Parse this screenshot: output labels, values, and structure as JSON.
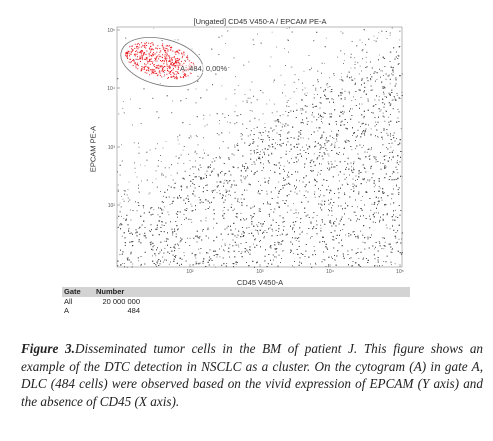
{
  "figure": {
    "title": "[Ungated] CD45 V450-A / EPCAM PE-A",
    "x_axis_label": "CD45 V450-A",
    "y_axis_label": "EPCAM PE-A",
    "gate_label": "A: 484, 0,00%",
    "x_ticks": [
      "10²",
      "10³",
      "10⁴",
      "10⁵"
    ],
    "y_ticks": [
      "10⁵",
      "10⁴",
      "10³",
      "10²"
    ]
  },
  "gate_table": {
    "headers": [
      "Gate",
      "Number"
    ],
    "rows": [
      {
        "gate": "All",
        "number": "20 000 000"
      },
      {
        "gate": "A",
        "number": "484"
      }
    ]
  },
  "caption": {
    "label": "Figure 3.",
    "text": "Disseminated tumor cells in the BM of patient J. This figure shows an example of the DTC detection in NSCLC as a cluster. On the cytogram (A) in gate A, DLC (484 cells) were observed based on the vivid expression of EPCAM (Y axis) and the absence of CD45 (X axis)."
  },
  "colors": {
    "events": "#555555",
    "gated_events": "#e8141c",
    "axis": "#777777",
    "table_header": "#d3d3d3"
  }
}
